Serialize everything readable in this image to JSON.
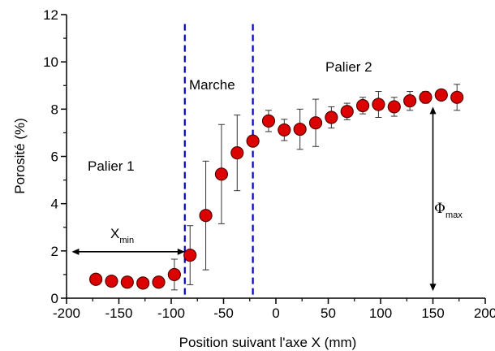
{
  "chart_data": {
    "type": "scatter",
    "title": "",
    "xlabel": "Position suivant l'axe X (mm)",
    "ylabel": "Porosité (%)",
    "xlim": [
      -200,
      200
    ],
    "ylim": [
      0,
      12
    ],
    "xticks": [
      "-200",
      "-150",
      "-100",
      "-50",
      "0",
      "50",
      "100",
      "150",
      "200"
    ],
    "yticks": [
      "0",
      "2",
      "4",
      "6",
      "8",
      "10",
      "12"
    ],
    "grid": false,
    "marker_color": "#dd0000",
    "divider_color": "#0000cc",
    "series": [
      {
        "x": [
          -172,
          -157,
          -142,
          -127,
          -112,
          -97,
          -82,
          -67,
          -52,
          -37,
          -22,
          -7,
          8,
          23,
          38,
          53,
          68,
          83,
          98,
          113,
          128,
          143,
          158,
          173
        ],
        "y": [
          0.8,
          0.72,
          0.68,
          0.64,
          0.68,
          1.0,
          1.82,
          3.5,
          5.25,
          6.15,
          6.65,
          7.5,
          7.12,
          7.15,
          7.42,
          7.65,
          7.9,
          8.15,
          8.2,
          8.1,
          8.35,
          8.5,
          8.6,
          8.5
        ],
        "err": [
          0.08,
          0.08,
          0.08,
          0.08,
          0.08,
          0.65,
          1.25,
          2.3,
          2.1,
          1.6,
          0.2,
          0.45,
          0.45,
          0.85,
          1.0,
          0.45,
          0.35,
          0.35,
          0.55,
          0.4,
          0.4,
          0.25,
          0.1,
          0.55
        ]
      }
    ],
    "dividers": [
      -87,
      -22
    ],
    "annotations": {
      "palier1": "Palier 1",
      "marche": "Marche",
      "palier2": "Palier 2",
      "xmin_main": "X",
      "xmin_sub": "min",
      "phimax_main": "Φ",
      "phimax_sub": "max"
    },
    "xmin_arrow": {
      "from": -87,
      "to": -195,
      "y": 2.0
    },
    "phimax_arrow": {
      "x": 150,
      "from": 8.1,
      "to": 0.3
    }
  }
}
